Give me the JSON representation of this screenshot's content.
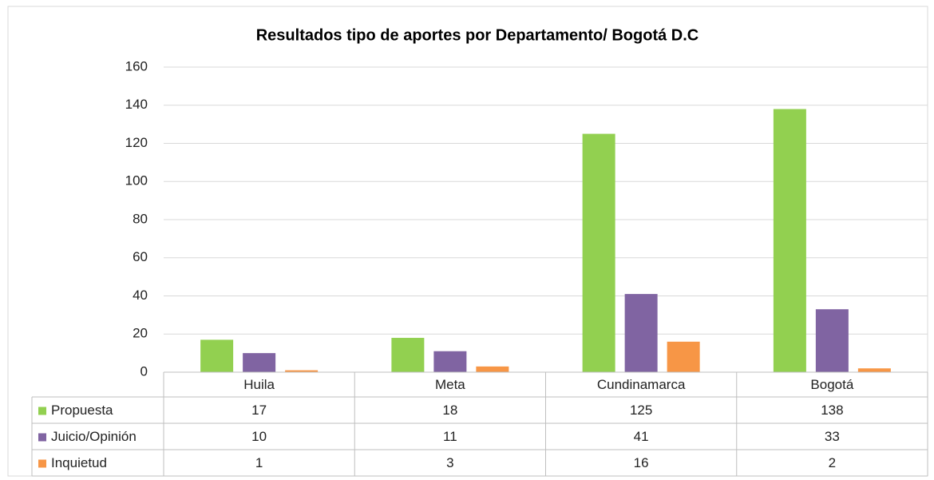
{
  "chart_data": {
    "type": "bar",
    "title": "Resultados tipo de aportes por Departamento/ Bogotá D.C",
    "categories": [
      "Huila",
      "Meta",
      "Cundinamarca",
      "Bogotá"
    ],
    "series": [
      {
        "name": "Propuesta",
        "color": "#92d050",
        "values": [
          17,
          18,
          125,
          138
        ]
      },
      {
        "name": "Juicio/Opinión",
        "color": "#8064a2",
        "values": [
          10,
          11,
          41,
          33
        ]
      },
      {
        "name": "Inquietud",
        "color": "#f79646",
        "values": [
          1,
          3,
          16,
          2
        ]
      }
    ],
    "ylim": [
      0,
      160
    ],
    "yticks": [
      0,
      20,
      40,
      60,
      80,
      100,
      120,
      140,
      160
    ],
    "grid": true
  }
}
